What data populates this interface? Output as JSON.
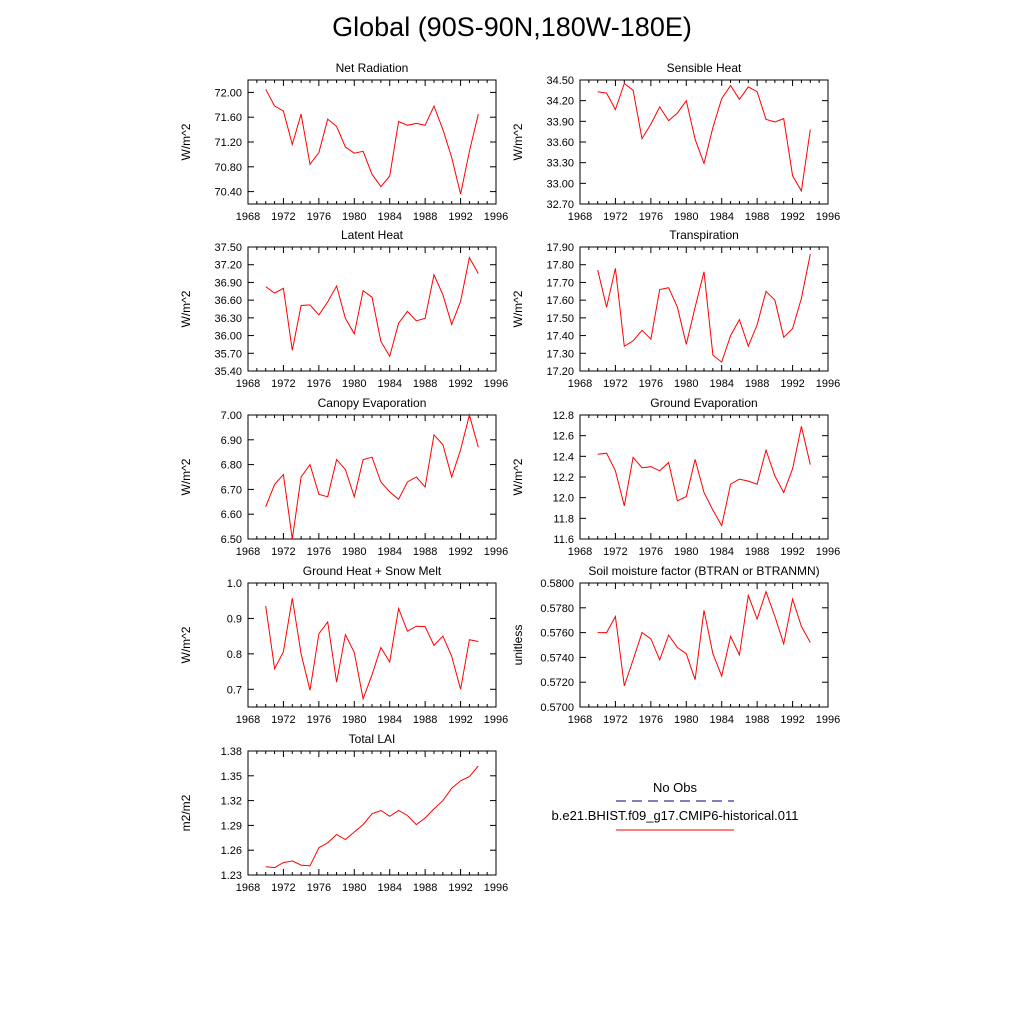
{
  "title": "Global (90S-90N,180W-180E)",
  "colors": {
    "model_line": "#ff0000",
    "obs_line": "#000080",
    "axis": "#000000"
  },
  "legend": {
    "obs_label": "No Obs",
    "model_label": "b.e21.BHIST.f09_g17.CMIP6-historical.011"
  },
  "chart_data": [
    {
      "type": "line",
      "title": "Net Radiation",
      "ylabel": "W/m^2",
      "xlim": [
        1968,
        1996
      ],
      "ylim": [
        70.2,
        72.2
      ],
      "xticks": [
        1968,
        1972,
        1976,
        1980,
        1984,
        1988,
        1992,
        1996
      ],
      "xtick_labels": [
        "1968",
        "1972",
        "1976",
        "1980",
        "1984",
        "1988",
        "1992",
        "1996"
      ],
      "yticks": [
        70.4,
        70.8,
        71.2,
        71.6,
        72.0
      ],
      "ytick_labels": [
        "70.40",
        "70.80",
        "71.20",
        "71.60",
        "72.00"
      ],
      "series": [
        {
          "x": [
            1970,
            1971,
            1972,
            1973,
            1974,
            1975,
            1976,
            1977,
            1978,
            1979,
            1980,
            1981,
            1982,
            1983,
            1984,
            1985,
            1986,
            1987,
            1988,
            1989,
            1990,
            1991,
            1992,
            1993,
            1994
          ],
          "y": [
            72.05,
            71.78,
            71.7,
            71.16,
            71.65,
            70.84,
            71.03,
            71.57,
            71.45,
            71.12,
            71.02,
            71.05,
            70.68,
            70.48,
            70.65,
            71.53,
            71.47,
            71.5,
            71.47,
            71.78,
            71.4,
            70.95,
            70.36,
            71.05,
            71.65
          ]
        }
      ]
    },
    {
      "type": "line",
      "title": "Sensible Heat",
      "ylabel": "W/m^2",
      "xlim": [
        1968,
        1996
      ],
      "ylim": [
        32.7,
        34.5
      ],
      "xticks": [
        1968,
        1972,
        1976,
        1980,
        1984,
        1988,
        1992,
        1996
      ],
      "xtick_labels": [
        "1968",
        "1972",
        "1976",
        "1980",
        "1984",
        "1988",
        "1992",
        "1996"
      ],
      "yticks": [
        32.7,
        33.0,
        33.3,
        33.6,
        33.9,
        34.2,
        34.5
      ],
      "ytick_labels": [
        "32.70",
        "33.00",
        "33.30",
        "33.60",
        "33.90",
        "34.20",
        "34.50"
      ],
      "series": [
        {
          "x": [
            1970,
            1971,
            1972,
            1973,
            1974,
            1975,
            1976,
            1977,
            1978,
            1979,
            1980,
            1981,
            1982,
            1983,
            1984,
            1985,
            1986,
            1987,
            1988,
            1989,
            1990,
            1991,
            1992,
            1993,
            1994
          ],
          "y": [
            34.33,
            34.31,
            34.07,
            34.45,
            34.35,
            33.65,
            33.86,
            34.11,
            33.91,
            34.02,
            34.2,
            33.64,
            33.29,
            33.81,
            34.23,
            34.42,
            34.22,
            34.4,
            34.33,
            33.93,
            33.89,
            33.94,
            33.11,
            32.89,
            33.78
          ]
        }
      ]
    },
    {
      "type": "line",
      "title": "Latent Heat",
      "ylabel": "W/m^2",
      "xlim": [
        1968,
        1996
      ],
      "ylim": [
        35.4,
        37.5
      ],
      "xticks": [
        1968,
        1972,
        1976,
        1980,
        1984,
        1988,
        1992,
        1996
      ],
      "xtick_labels": [
        "1968",
        "1972",
        "1976",
        "1980",
        "1984",
        "1988",
        "1992",
        "1996"
      ],
      "yticks": [
        35.4,
        35.7,
        36.0,
        36.3,
        36.6,
        36.9,
        37.2,
        37.5
      ],
      "ytick_labels": [
        "35.40",
        "35.70",
        "36.00",
        "36.30",
        "36.60",
        "36.90",
        "37.20",
        "37.50"
      ],
      "series": [
        {
          "x": [
            1970,
            1971,
            1972,
            1973,
            1974,
            1975,
            1976,
            1977,
            1978,
            1979,
            1980,
            1981,
            1982,
            1983,
            1984,
            1985,
            1986,
            1987,
            1988,
            1989,
            1990,
            1991,
            1992,
            1993,
            1994
          ],
          "y": [
            36.83,
            36.72,
            36.8,
            35.75,
            36.51,
            36.52,
            36.35,
            36.57,
            36.84,
            36.29,
            36.03,
            36.76,
            36.65,
            35.9,
            35.65,
            36.21,
            36.41,
            36.25,
            36.29,
            37.03,
            36.69,
            36.19,
            36.58,
            37.32,
            37.05
          ]
        }
      ]
    },
    {
      "type": "line",
      "title": "Transpiration",
      "ylabel": "W/m^2",
      "xlim": [
        1968,
        1996
      ],
      "ylim": [
        17.2,
        17.9
      ],
      "xticks": [
        1968,
        1972,
        1976,
        1980,
        1984,
        1988,
        1992,
        1996
      ],
      "xtick_labels": [
        "1968",
        "1972",
        "1976",
        "1980",
        "1984",
        "1988",
        "1992",
        "1996"
      ],
      "yticks": [
        17.2,
        17.3,
        17.4,
        17.5,
        17.6,
        17.7,
        17.8,
        17.9
      ],
      "ytick_labels": [
        "17.20",
        "17.30",
        "17.40",
        "17.50",
        "17.60",
        "17.70",
        "17.80",
        "17.90"
      ],
      "series": [
        {
          "x": [
            1970,
            1971,
            1972,
            1973,
            1974,
            1975,
            1976,
            1977,
            1978,
            1979,
            1980,
            1981,
            1982,
            1983,
            1984,
            1985,
            1986,
            1987,
            1988,
            1989,
            1990,
            1991,
            1992,
            1993,
            1994
          ],
          "y": [
            17.77,
            17.56,
            17.78,
            17.34,
            17.37,
            17.43,
            17.38,
            17.66,
            17.67,
            17.56,
            17.35,
            17.56,
            17.76,
            17.29,
            17.25,
            17.4,
            17.49,
            17.34,
            17.46,
            17.65,
            17.6,
            17.39,
            17.44,
            17.61,
            17.86
          ]
        }
      ]
    },
    {
      "type": "line",
      "title": "Canopy Evaporation",
      "ylabel": "W/m^2",
      "xlim": [
        1968,
        1996
      ],
      "ylim": [
        6.5,
        7.0
      ],
      "xticks": [
        1968,
        1972,
        1976,
        1980,
        1984,
        1988,
        1992,
        1996
      ],
      "xtick_labels": [
        "1968",
        "1972",
        "1976",
        "1980",
        "1984",
        "1988",
        "1992",
        "1996"
      ],
      "yticks": [
        6.5,
        6.6,
        6.7,
        6.8,
        6.9,
        7.0
      ],
      "ytick_labels": [
        "6.50",
        "6.60",
        "6.70",
        "6.80",
        "6.90",
        "7.00"
      ],
      "series": [
        {
          "x": [
            1970,
            1971,
            1972,
            1973,
            1974,
            1975,
            1976,
            1977,
            1978,
            1979,
            1980,
            1981,
            1982,
            1983,
            1984,
            1985,
            1986,
            1987,
            1988,
            1989,
            1990,
            1991,
            1992,
            1993,
            1994
          ],
          "y": [
            6.63,
            6.72,
            6.76,
            6.5,
            6.75,
            6.8,
            6.68,
            6.67,
            6.82,
            6.78,
            6.67,
            6.82,
            6.83,
            6.73,
            6.69,
            6.66,
            6.73,
            6.75,
            6.71,
            6.92,
            6.88,
            6.75,
            6.86,
            7.0,
            6.87
          ]
        }
      ]
    },
    {
      "type": "line",
      "title": "Ground Evaporation",
      "ylabel": "W/m^2",
      "xlim": [
        1968,
        1996
      ],
      "ylim": [
        11.6,
        12.8
      ],
      "xticks": [
        1968,
        1972,
        1976,
        1980,
        1984,
        1988,
        1992,
        1996
      ],
      "xtick_labels": [
        "1968",
        "1972",
        "1976",
        "1980",
        "1984",
        "1988",
        "1992",
        "1996"
      ],
      "yticks": [
        11.6,
        11.8,
        12.0,
        12.2,
        12.4,
        12.6,
        12.8
      ],
      "ytick_labels": [
        "11.6",
        "11.8",
        "12.0",
        "12.2",
        "12.4",
        "12.6",
        "12.8"
      ],
      "series": [
        {
          "x": [
            1970,
            1971,
            1972,
            1973,
            1974,
            1975,
            1976,
            1977,
            1978,
            1979,
            1980,
            1981,
            1982,
            1983,
            1984,
            1985,
            1986,
            1987,
            1988,
            1989,
            1990,
            1991,
            1992,
            1993,
            1994
          ],
          "y": [
            12.42,
            12.43,
            12.26,
            11.92,
            12.39,
            12.29,
            12.3,
            12.26,
            12.34,
            11.97,
            12.01,
            12.37,
            12.05,
            11.88,
            11.73,
            12.13,
            12.18,
            12.16,
            12.13,
            12.46,
            12.21,
            12.05,
            12.28,
            12.69,
            12.32
          ]
        }
      ]
    },
    {
      "type": "line",
      "title": "Ground Heat + Snow Melt",
      "ylabel": "W/m^2",
      "xlim": [
        1968,
        1996
      ],
      "ylim": [
        0.65,
        1.0
      ],
      "xticks": [
        1968,
        1972,
        1976,
        1980,
        1984,
        1988,
        1992,
        1996
      ],
      "xtick_labels": [
        "1968",
        "1972",
        "1976",
        "1980",
        "1984",
        "1988",
        "1992",
        "1996"
      ],
      "yticks": [
        0.7,
        0.8,
        0.9,
        1.0
      ],
      "ytick_labels": [
        "0.7",
        "0.8",
        "0.9",
        "1.0"
      ],
      "series": [
        {
          "x": [
            1970,
            1971,
            1972,
            1973,
            1974,
            1975,
            1976,
            1977,
            1978,
            1979,
            1980,
            1981,
            1982,
            1983,
            1984,
            1985,
            1986,
            1987,
            1988,
            1989,
            1990,
            1991,
            1992,
            1993,
            1994
          ],
          "y": [
            0.935,
            0.758,
            0.806,
            0.957,
            0.8,
            0.697,
            0.857,
            0.89,
            0.72,
            0.854,
            0.804,
            0.673,
            0.741,
            0.818,
            0.777,
            0.928,
            0.864,
            0.878,
            0.877,
            0.824,
            0.85,
            0.793,
            0.7,
            0.84,
            0.835
          ]
        }
      ]
    },
    {
      "type": "line",
      "title": "Soil moisture factor (BTRAN or BTRANMN)",
      "ylabel": "unitless",
      "xlim": [
        1968,
        1996
      ],
      "ylim": [
        0.57,
        0.58
      ],
      "xticks": [
        1968,
        1972,
        1976,
        1980,
        1984,
        1988,
        1992,
        1996
      ],
      "xtick_labels": [
        "1968",
        "1972",
        "1976",
        "1980",
        "1984",
        "1988",
        "1992",
        "1996"
      ],
      "yticks": [
        0.57,
        0.572,
        0.574,
        0.576,
        0.578,
        0.58
      ],
      "ytick_labels": [
        "0.5700",
        "0.5720",
        "0.5740",
        "0.5760",
        "0.5780",
        "0.5800"
      ],
      "series": [
        {
          "x": [
            1970,
            1971,
            1972,
            1973,
            1974,
            1975,
            1976,
            1977,
            1978,
            1979,
            1980,
            1981,
            1982,
            1983,
            1984,
            1985,
            1986,
            1987,
            1988,
            1989,
            1990,
            1991,
            1992,
            1993,
            1994
          ],
          "y": [
            0.576,
            0.576,
            0.5773,
            0.5717,
            0.5738,
            0.576,
            0.5755,
            0.5738,
            0.5758,
            0.5748,
            0.5743,
            0.5722,
            0.5778,
            0.5743,
            0.5725,
            0.5757,
            0.5742,
            0.579,
            0.5771,
            0.5793,
            0.5773,
            0.5751,
            0.5787,
            0.5765,
            0.5752
          ]
        }
      ]
    },
    {
      "type": "line",
      "title": "Total LAI",
      "ylabel": "m2/m2",
      "xlim": [
        1968,
        1996
      ],
      "ylim": [
        1.23,
        1.38
      ],
      "xticks": [
        1968,
        1972,
        1976,
        1980,
        1984,
        1988,
        1992,
        1996
      ],
      "xtick_labels": [
        "1968",
        "1972",
        "1976",
        "1980",
        "1984",
        "1988",
        "1992",
        "1996"
      ],
      "yticks": [
        1.23,
        1.26,
        1.29,
        1.32,
        1.35,
        1.38
      ],
      "ytick_labels": [
        "1.23",
        "1.26",
        "1.29",
        "1.32",
        "1.35",
        "1.38"
      ],
      "series": [
        {
          "x": [
            1970,
            1971,
            1972,
            1973,
            1974,
            1975,
            1976,
            1977,
            1978,
            1979,
            1980,
            1981,
            1982,
            1983,
            1984,
            1985,
            1986,
            1987,
            1988,
            1989,
            1990,
            1991,
            1992,
            1993,
            1994
          ],
          "y": [
            1.24,
            1.239,
            1.245,
            1.247,
            1.242,
            1.241,
            1.263,
            1.269,
            1.279,
            1.273,
            1.282,
            1.291,
            1.304,
            1.308,
            1.301,
            1.308,
            1.302,
            1.291,
            1.299,
            1.31,
            1.32,
            1.335,
            1.344,
            1.349,
            1.362
          ]
        }
      ]
    }
  ]
}
